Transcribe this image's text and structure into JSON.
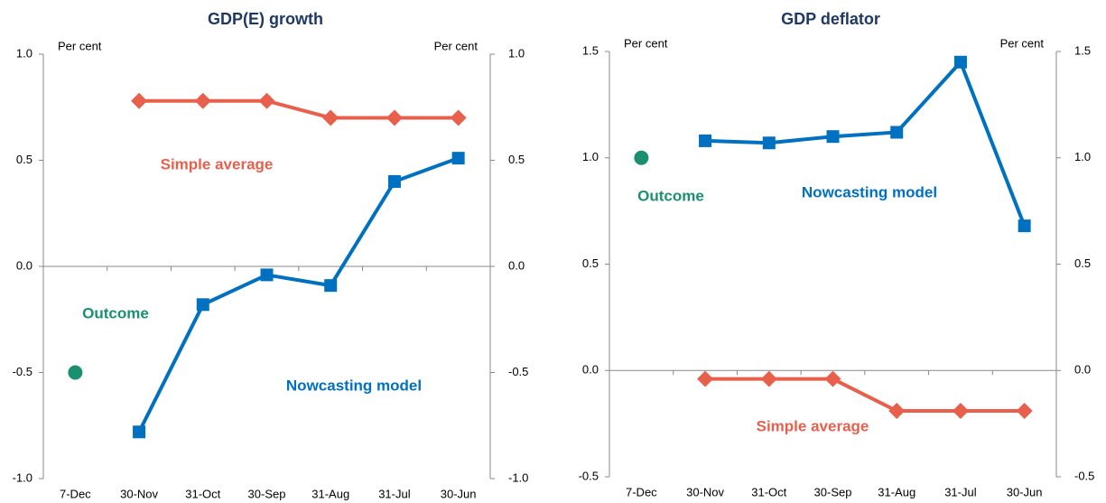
{
  "chart_data": [
    {
      "type": "line",
      "title": "GDP(E) growth",
      "y_label": "Per cent",
      "y2_label": "Per cent",
      "categories": [
        "7-Dec",
        "30-Nov",
        "31-Oct",
        "30-Sep",
        "31-Aug",
        "31-Jul",
        "30-Jun"
      ],
      "ylim": [
        -1,
        1
      ],
      "yticks": [
        {
          "value": -1,
          "label": "-1.0"
        },
        {
          "value": -0.5,
          "label": "-0.5"
        },
        {
          "value": 0,
          "label": "0.0"
        },
        {
          "value": 0.5,
          "label": "0.5"
        },
        {
          "value": 1,
          "label": "1.0"
        }
      ],
      "y2lim": [
        -1,
        1
      ],
      "y2ticks": [
        {
          "value": -1,
          "label": "-1.0"
        },
        {
          "value": -0.5,
          "label": "-0.5"
        },
        {
          "value": 0,
          "label": "0.0"
        },
        {
          "value": 0.5,
          "label": "0.5"
        },
        {
          "value": 1,
          "label": "1.0"
        }
      ],
      "series": [
        {
          "name": "Simple average",
          "color": "#e8604c",
          "marker": "diamond",
          "values": [
            null,
            0.78,
            0.78,
            0.78,
            0.7,
            0.7,
            0.7
          ]
        },
        {
          "name": "Nowcasting model",
          "color": "#0070c0",
          "marker": "square",
          "values": [
            null,
            -0.78,
            -0.18,
            -0.04,
            -0.09,
            0.4,
            0.51
          ]
        },
        {
          "name": "Outcome",
          "color": "#1a9070",
          "marker": "circle",
          "values": [
            -0.5,
            null,
            null,
            null,
            null,
            null,
            null
          ]
        }
      ]
    },
    {
      "type": "line",
      "title": "GDP deflator",
      "y_label": "Per cent",
      "y2_label": "Per cent",
      "categories": [
        "7-Dec",
        "30-Nov",
        "31-Oct",
        "30-Sep",
        "31-Aug",
        "31-Jul",
        "30-Jun"
      ],
      "ylim": [
        -0.5,
        1.5
      ],
      "yticks": [
        {
          "value": -0.5,
          "label": "-0.5"
        },
        {
          "value": 0,
          "label": "0.0"
        },
        {
          "value": 0.5,
          "label": "0.5"
        },
        {
          "value": 1,
          "label": "1.0"
        },
        {
          "value": 1.5,
          "label": "1.5"
        }
      ],
      "y2lim": [
        -0.5,
        1.5
      ],
      "y2ticks": [
        {
          "value": -0.5,
          "label": "-0.5"
        },
        {
          "value": 0,
          "label": "0.0"
        },
        {
          "value": 0.5,
          "label": "0.5"
        },
        {
          "value": 1,
          "label": "1.0"
        },
        {
          "value": 1.5,
          "label": "1.5"
        }
      ],
      "series": [
        {
          "name": "Nowcasting model",
          "color": "#0070c0",
          "marker": "square",
          "values": [
            null,
            1.08,
            1.07,
            1.1,
            1.12,
            1.45,
            0.68
          ]
        },
        {
          "name": "Simple average",
          "color": "#e8604c",
          "marker": "diamond",
          "values": [
            null,
            -0.04,
            -0.04,
            -0.04,
            -0.19,
            -0.19,
            -0.19
          ]
        },
        {
          "name": "Outcome",
          "color": "#1a9070",
          "marker": "circle",
          "values": [
            1.0,
            null,
            null,
            null,
            null,
            null,
            null
          ]
        }
      ]
    }
  ]
}
